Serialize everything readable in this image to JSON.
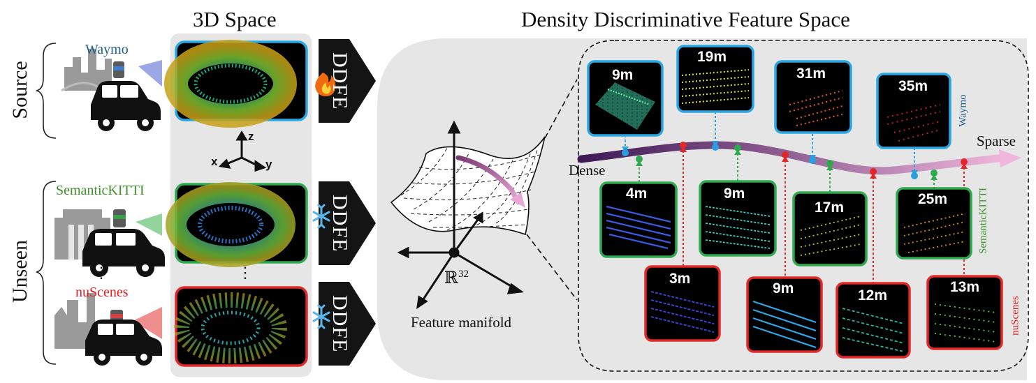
{
  "titles": {
    "space_3d": "3D Space",
    "feature_space": "Density Discriminative Feature Space"
  },
  "groups": {
    "source": "Source",
    "unseen": "Unseen"
  },
  "datasets": {
    "waymo": {
      "name": "Waymo",
      "color": "#1f5f8b"
    },
    "semantickitti": {
      "name": "SemanticKITTI",
      "color": "#3f8f2a"
    },
    "nuscenes": {
      "name": "nuScenes",
      "color": "#e02020"
    },
    "ellipsis": "⋮"
  },
  "ddfe": {
    "label": "DDFE",
    "trainable_icon": "fire-icon",
    "frozen_icon": "snowflake-icon"
  },
  "axes_3d": {
    "x": "x",
    "y": "y",
    "z": "z"
  },
  "manifold": {
    "space_symbol": "ℝ",
    "space_dim": "32",
    "caption": "Feature manifold"
  },
  "density_curve": {
    "dense_label": "Dense",
    "sparse_label": "Sparse"
  },
  "tiles": {
    "waymo": [
      "9m",
      "19m",
      "31m",
      "35m"
    ],
    "semantickitti": [
      "4m",
      "9m",
      "17m",
      "25m"
    ],
    "nuscenes": [
      "3m",
      "9m",
      "12m",
      "13m"
    ]
  },
  "colors": {
    "waymo_border": "#2aa6e0",
    "kitti_border": "#2fa84f",
    "nuscenes_border": "#e02828",
    "panel_gray": "#e6e6e6",
    "arrow_dark": "#141414",
    "curve_dense": "#3e1a55",
    "curve_sparse": "#efb7dc"
  }
}
